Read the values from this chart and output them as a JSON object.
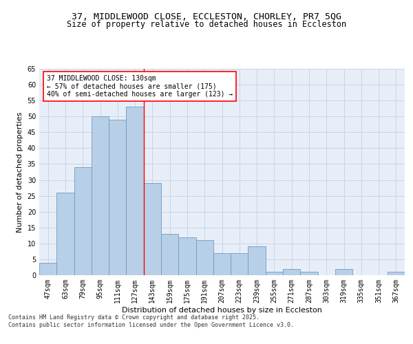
{
  "title1": "37, MIDDLEWOOD CLOSE, ECCLESTON, CHORLEY, PR7 5QG",
  "title2": "Size of property relative to detached houses in Eccleston",
  "xlabel": "Distribution of detached houses by size in Eccleston",
  "ylabel": "Number of detached properties",
  "categories": [
    "47sqm",
    "63sqm",
    "79sqm",
    "95sqm",
    "111sqm",
    "127sqm",
    "143sqm",
    "159sqm",
    "175sqm",
    "191sqm",
    "207sqm",
    "223sqm",
    "239sqm",
    "255sqm",
    "271sqm",
    "287sqm",
    "303sqm",
    "319sqm",
    "335sqm",
    "351sqm",
    "367sqm"
  ],
  "values": [
    4,
    26,
    34,
    50,
    49,
    53,
    29,
    13,
    12,
    11,
    7,
    7,
    9,
    1,
    2,
    1,
    0,
    2,
    0,
    0,
    1
  ],
  "bar_color": "#b8cfe8",
  "bar_edge_color": "#6b9dc2",
  "grid_color": "#c8d4e8",
  "background_color": "#e8eef8",
  "annotation_text": "37 MIDDLEWOOD CLOSE: 130sqm\n← 57% of detached houses are smaller (175)\n40% of semi-detached houses are larger (123) →",
  "vline_x_index": 5,
  "ylim": [
    0,
    65
  ],
  "yticks": [
    0,
    5,
    10,
    15,
    20,
    25,
    30,
    35,
    40,
    45,
    50,
    55,
    60,
    65
  ],
  "footer": "Contains HM Land Registry data © Crown copyright and database right 2025.\nContains public sector information licensed under the Open Government Licence v3.0.",
  "title_fontsize": 9.5,
  "subtitle_fontsize": 8.5,
  "tick_fontsize": 7,
  "label_fontsize": 8,
  "annot_fontsize": 7,
  "footer_fontsize": 6
}
